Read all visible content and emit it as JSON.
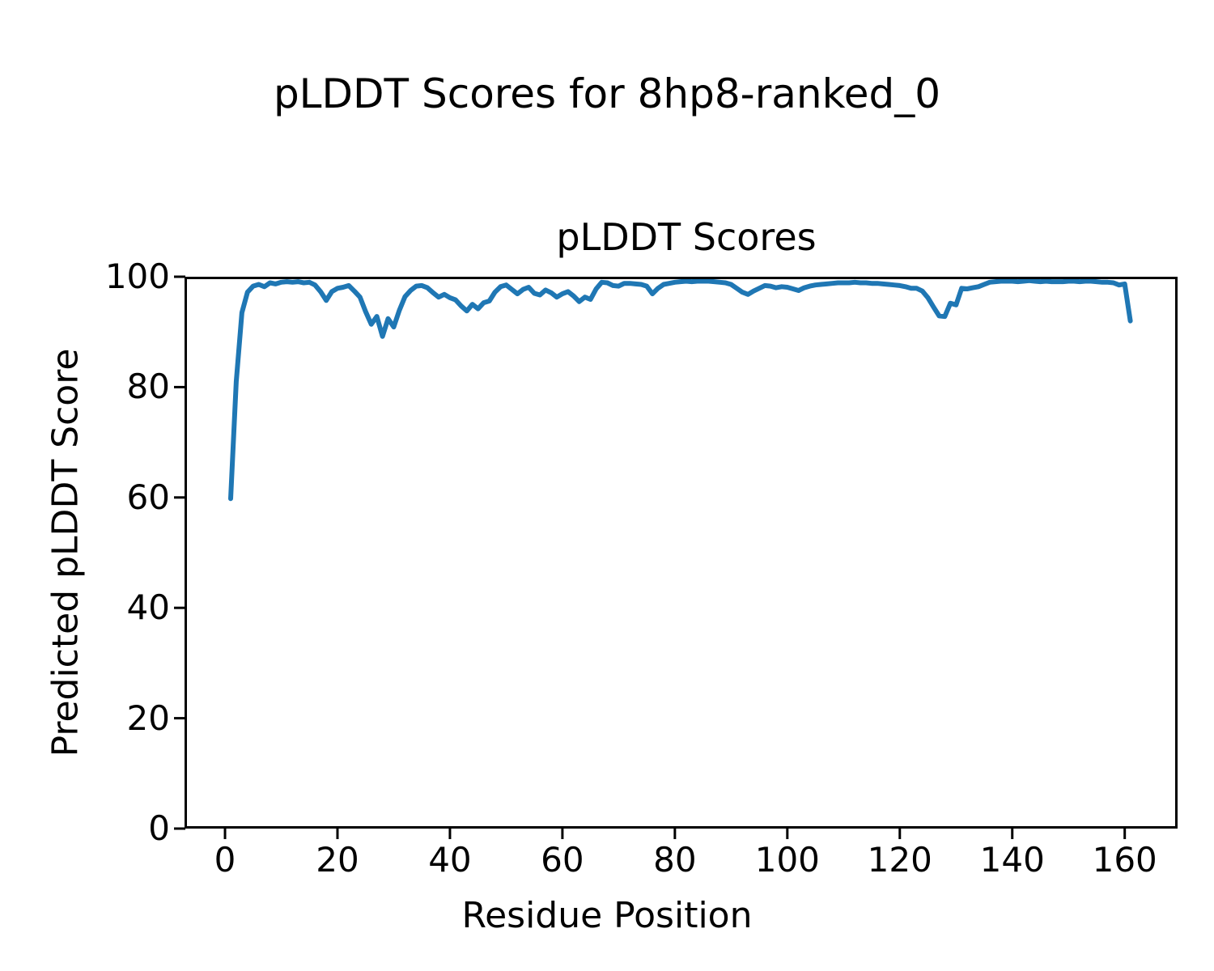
{
  "figure": {
    "suptitle": "pLDDT Scores for 8hp8-ranked_0"
  },
  "chart_data": {
    "type": "line",
    "title": "pLDDT Scores",
    "xlabel": "Residue Position",
    "ylabel": "Predicted pLDDT Score",
    "xlim": [
      -7.2,
      169.4
    ],
    "ylim": [
      0,
      100
    ],
    "x_ticks": [
      0,
      20,
      40,
      60,
      80,
      100,
      120,
      140,
      160
    ],
    "y_ticks": [
      0,
      20,
      40,
      60,
      80,
      100
    ],
    "grid": false,
    "legend_position": "none",
    "line_color": "#1f77b4",
    "axis_color": "#000000",
    "series": [
      {
        "name": "pLDDT",
        "x_start": 1,
        "x_step": 1,
        "values": [
          59.8,
          81.0,
          93.5,
          97.2,
          98.3,
          98.6,
          98.2,
          98.9,
          98.7,
          99.0,
          99.1,
          99.0,
          99.1,
          98.9,
          99.0,
          98.5,
          97.3,
          95.7,
          97.3,
          97.9,
          98.1,
          98.4,
          97.4,
          96.3,
          93.7,
          91.4,
          92.8,
          89.2,
          92.4,
          90.9,
          93.9,
          96.4,
          97.5,
          98.3,
          98.4,
          98.0,
          97.1,
          96.3,
          96.8,
          96.2,
          95.8,
          94.7,
          93.8,
          95.0,
          94.2,
          95.3,
          95.6,
          97.2,
          98.2,
          98.5,
          97.7,
          96.9,
          97.7,
          98.1,
          97.0,
          96.7,
          97.6,
          97.1,
          96.3,
          96.9,
          97.3,
          96.5,
          95.5,
          96.3,
          95.9,
          97.8,
          99.0,
          98.9,
          98.4,
          98.3,
          98.8,
          98.8,
          98.7,
          98.6,
          98.3,
          96.9,
          97.9,
          98.6,
          98.8,
          99.0,
          99.1,
          99.2,
          99.1,
          99.2,
          99.2,
          99.2,
          99.1,
          99.0,
          98.9,
          98.6,
          97.9,
          97.2,
          96.8,
          97.4,
          97.9,
          98.4,
          98.3,
          98.0,
          98.2,
          98.1,
          97.8,
          97.5,
          98.0,
          98.3,
          98.5,
          98.6,
          98.7,
          98.8,
          98.9,
          98.9,
          98.9,
          99.0,
          98.9,
          98.9,
          98.8,
          98.8,
          98.7,
          98.6,
          98.5,
          98.4,
          98.2,
          97.9,
          97.9,
          97.4,
          96.2,
          94.5,
          92.9,
          92.8,
          95.2,
          94.9,
          97.9,
          97.8,
          98.0,
          98.2,
          98.6,
          99.0,
          99.1,
          99.2,
          99.2,
          99.2,
          99.1,
          99.2,
          99.3,
          99.2,
          99.1,
          99.2,
          99.1,
          99.1,
          99.1,
          99.2,
          99.2,
          99.1,
          99.2,
          99.2,
          99.1,
          99.0,
          99.0,
          98.9,
          98.5,
          98.7,
          92.0
        ]
      }
    ]
  }
}
